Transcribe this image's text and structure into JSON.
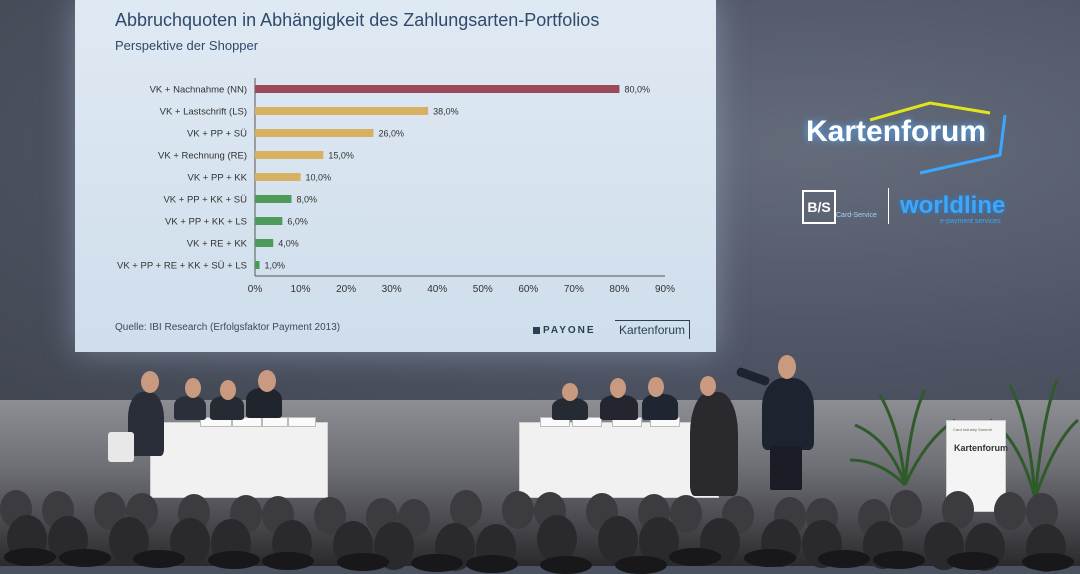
{
  "slide": {
    "title": "Abbruchquoten in Abhängigkeit des Zahlungsarten-Portfolios",
    "subtitle": "Perspektive der Shopper",
    "source": "Quelle: IBI Research (Erfolgsfaktor Payment 2013)",
    "logo_payone": "PAYONE",
    "logo_kartenforum_small": "Kartenforum"
  },
  "chart_data": {
    "type": "bar",
    "orientation": "horizontal",
    "categories": [
      "VK + Nachnahme (NN)",
      "VK + Lastschrift (LS)",
      "VK + PP + SÜ",
      "VK + Rechnung (RE)",
      "VK + PP + KK",
      "VK + PP + KK + SÜ",
      "VK + PP + KK + LS",
      "VK + RE + KK",
      "VK + PP + RE + KK + SÜ + LS"
    ],
    "values": [
      80,
      38,
      26,
      15,
      10,
      8,
      6,
      4,
      1
    ],
    "value_labels": [
      "80,0%",
      "38,0%",
      "26,0%",
      "15,0%",
      "10,0%",
      "8,0%",
      "6,0%",
      "4,0%",
      "1,0%"
    ],
    "bar_colors": [
      "#9b4a5a",
      "#d8b062",
      "#d8b062",
      "#d8b062",
      "#d8b062",
      "#4e9a5a",
      "#4e9a5a",
      "#4e9a5a",
      "#4e9a5a"
    ],
    "xlim": [
      0,
      90
    ],
    "xticks": [
      "0%",
      "10%",
      "20%",
      "30%",
      "40%",
      "50%",
      "60%",
      "70%",
      "80%",
      "90%"
    ],
    "title": "Abbruchquoten in Abhängigkeit des Zahlungsarten-Portfolios",
    "subtitle": "Perspektive der Shopper",
    "grid": false
  },
  "event_logo": {
    "name": "Kartenforum",
    "partner1": "B/S",
    "partner1_sub": "Card-Service",
    "partner2": "worldline",
    "partner2_sub": "e-payment services"
  },
  "lectern": {
    "label": "Kartenforum",
    "top_text": "Card Industry Summit"
  },
  "colors": {
    "screen_bg": "#dfe9f3",
    "title_text": "#2f4a6a",
    "logo_glow": "#3aa8ff",
    "logo_swoosh": "#e3e51c"
  }
}
